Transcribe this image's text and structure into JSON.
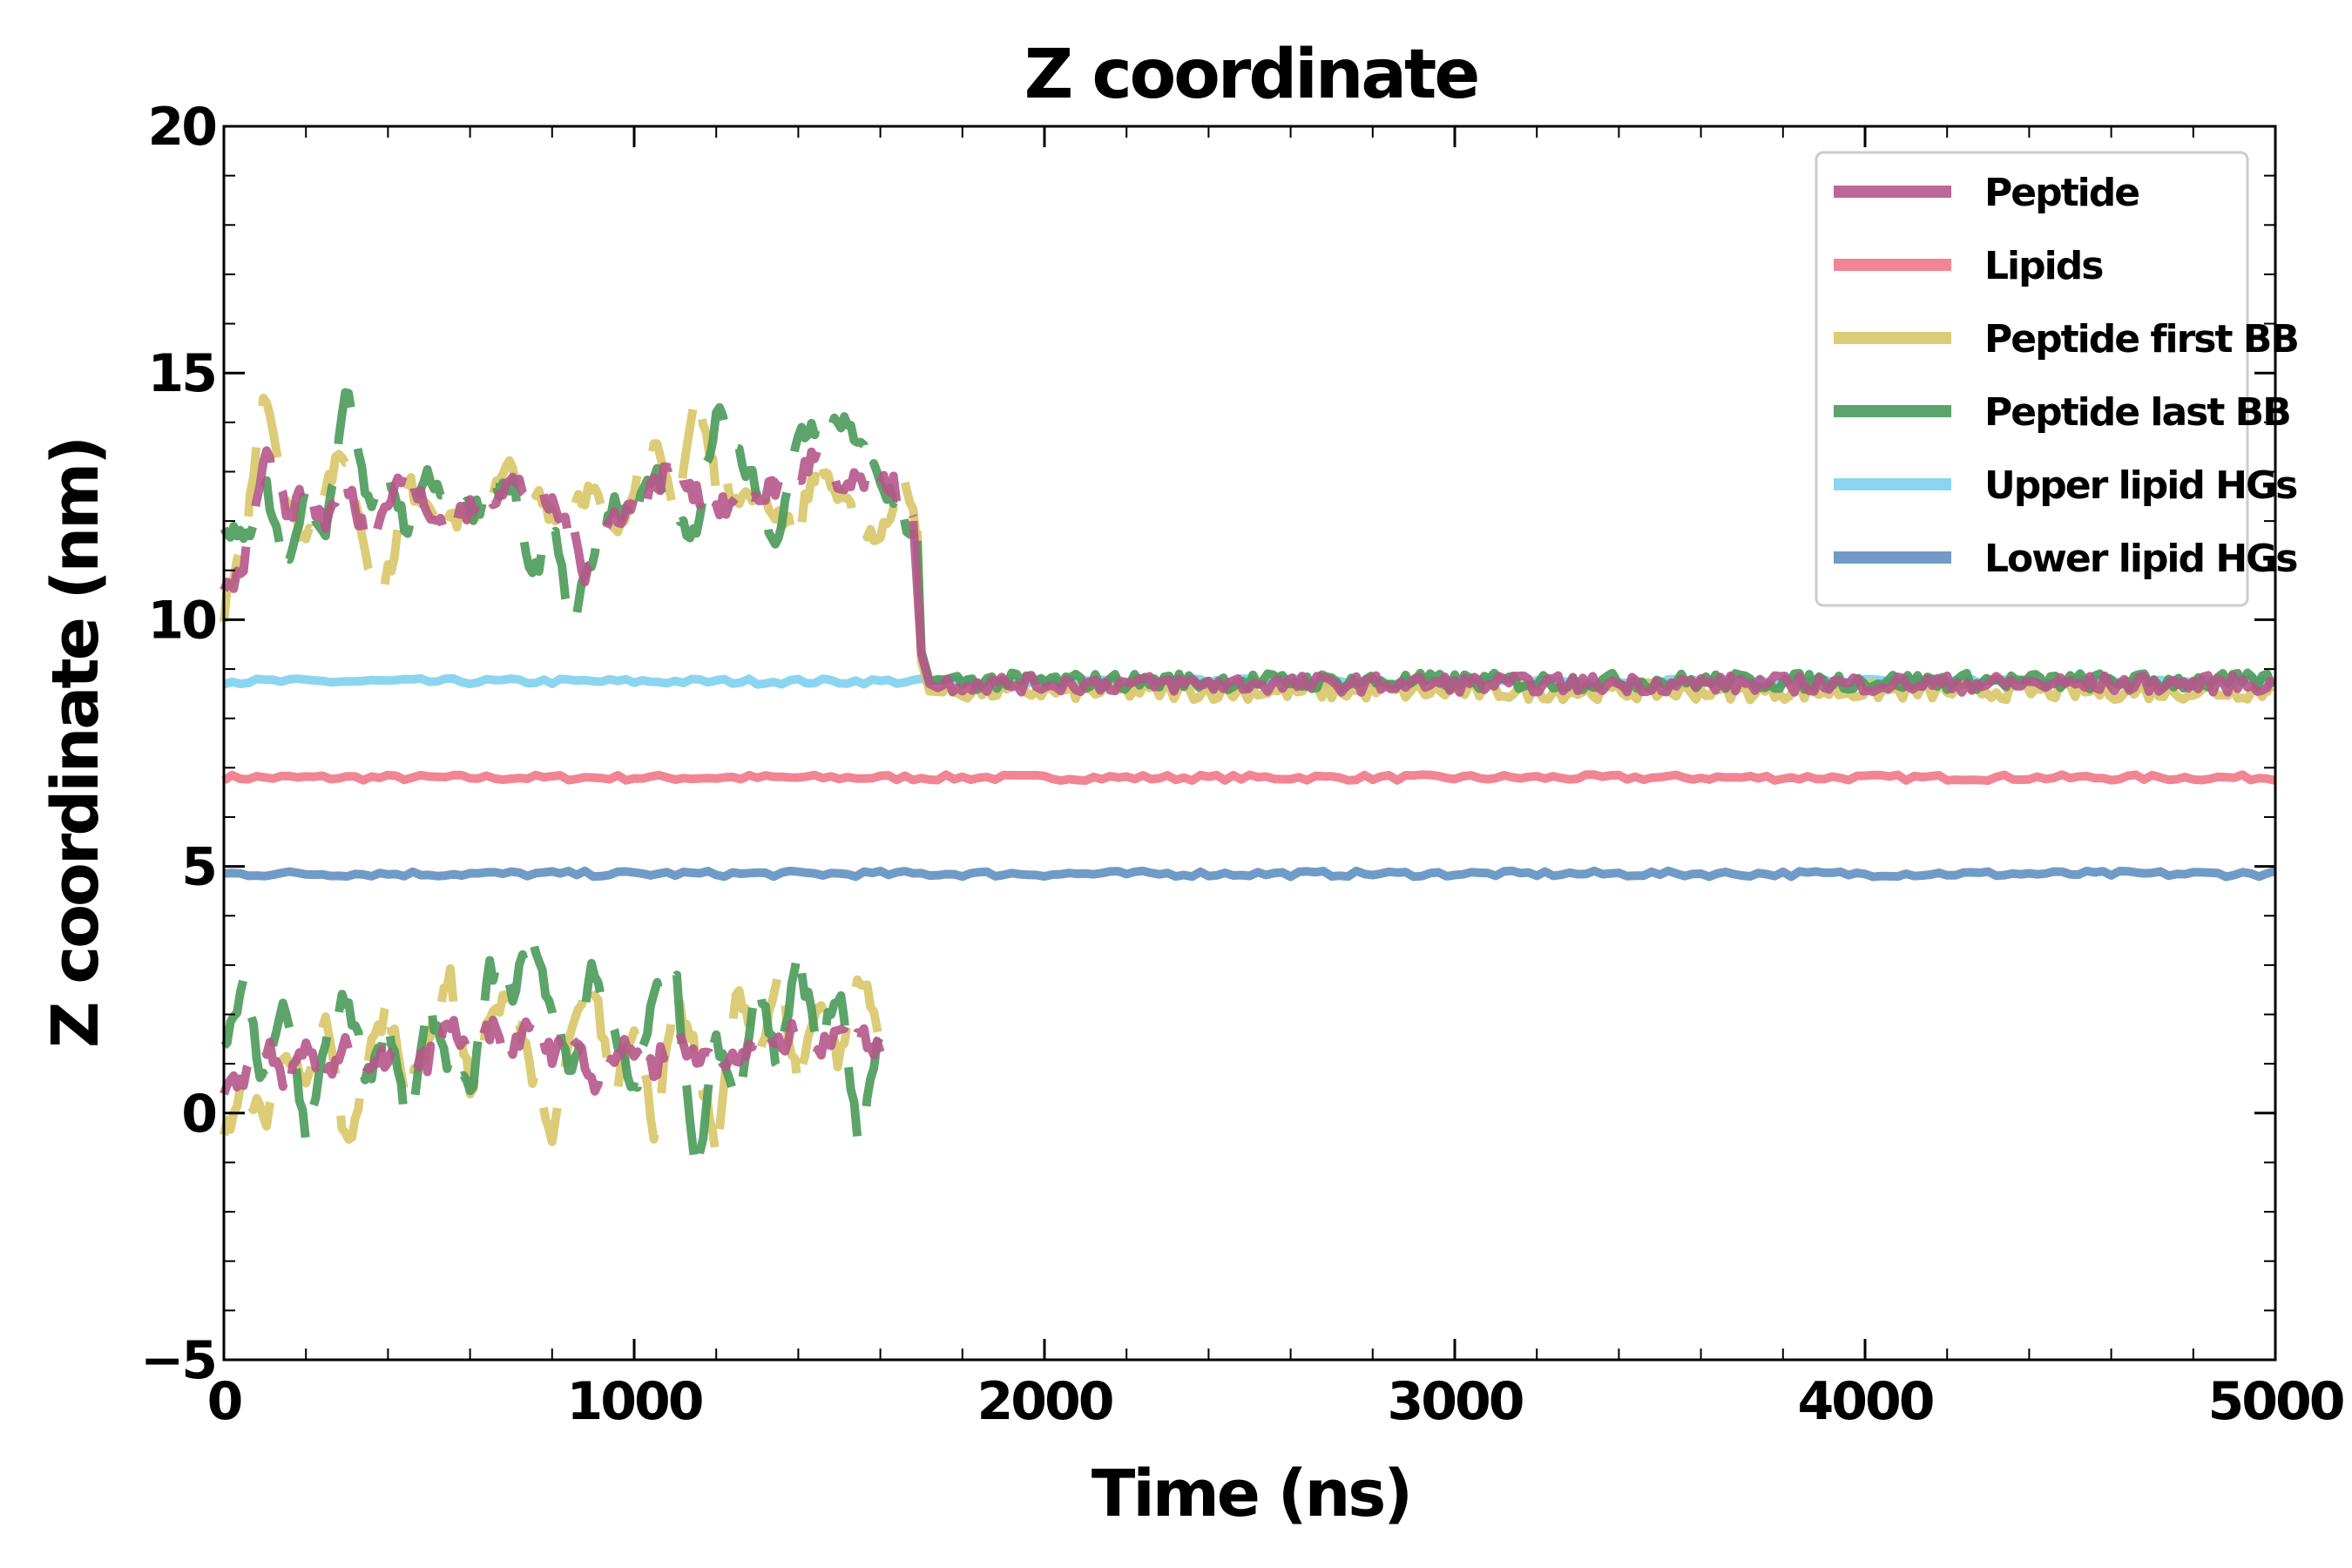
{
  "chart_data": {
    "type": "line",
    "title": "Z coordinate",
    "xlabel": "Time (ns)",
    "ylabel": "Z coordinate (nm)",
    "xlim": [
      0,
      5000
    ],
    "ylim": [
      -5,
      20
    ],
    "x_ticks": [
      0,
      1000,
      2000,
      3000,
      4000,
      5000
    ],
    "x_tick_labels": [
      "0",
      "1000",
      "2000",
      "3000",
      "4000",
      "5000"
    ],
    "y_ticks": [
      -5,
      0,
      5,
      10,
      15,
      20
    ],
    "y_tick_labels": [
      "−5",
      "0",
      "5",
      "10",
      "15",
      "20"
    ],
    "grid": false,
    "legend_position": "top-right",
    "series": [
      {
        "name": "Peptide",
        "color": "#b5568a",
        "upper": [
          [
            0,
            10.5
          ],
          [
            50,
            11.2
          ],
          [
            100,
            13.5
          ],
          [
            150,
            12.2
          ],
          [
            200,
            12.5
          ],
          [
            250,
            12.0
          ],
          [
            300,
            12.8
          ],
          [
            350,
            11.6
          ],
          [
            400,
            12.4
          ],
          [
            450,
            13.1
          ],
          [
            500,
            12.0
          ],
          [
            600,
            12.2
          ],
          [
            700,
            12.8
          ],
          [
            800,
            12.3
          ],
          [
            850,
            11.8
          ],
          [
            880,
            11.0
          ],
          [
            950,
            12.1
          ],
          [
            1000,
            12.3
          ],
          [
            1050,
            12.7
          ],
          [
            1100,
            13.2
          ],
          [
            1150,
            12.6
          ],
          [
            1200,
            12.2
          ],
          [
            1300,
            12.5
          ],
          [
            1400,
            12.9
          ],
          [
            1450,
            13.4
          ],
          [
            1500,
            12.6
          ],
          [
            1600,
            13.0
          ],
          [
            1650,
            12.5
          ],
          [
            1680,
            12.0
          ]
        ],
        "lower": [
          [
            0,
            0.3
          ],
          [
            50,
            0.8
          ],
          [
            100,
            1.4
          ],
          [
            150,
            0.6
          ],
          [
            200,
            1.2
          ],
          [
            250,
            0.8
          ],
          [
            300,
            1.5
          ],
          [
            350,
            0.7
          ],
          [
            400,
            1.2
          ],
          [
            450,
            0.9
          ],
          [
            500,
            1.1
          ],
          [
            550,
            1.8
          ],
          [
            600,
            1.3
          ],
          [
            650,
            1.7
          ],
          [
            700,
            1.2
          ],
          [
            750,
            2.0
          ],
          [
            800,
            1.1
          ],
          [
            850,
            1.6
          ],
          [
            900,
            0.6
          ],
          [
            950,
            1.2
          ],
          [
            1000,
            1.3
          ],
          [
            1050,
            0.9
          ],
          [
            1100,
            1.8
          ],
          [
            1150,
            1.0
          ],
          [
            1200,
            1.4
          ],
          [
            1250,
            0.9
          ],
          [
            1300,
            1.6
          ],
          [
            1350,
            1.3
          ],
          [
            1400,
            1.7
          ],
          [
            1450,
            1.1
          ],
          [
            1500,
            1.9
          ],
          [
            1550,
            1.6
          ],
          [
            1600,
            1.3
          ]
        ],
        "settled": 8.7
      },
      {
        "name": "Lipids",
        "color": "#f07888",
        "level": 6.8
      },
      {
        "name": "Peptide first BB",
        "color": "#d8c668",
        "upper": [
          [
            0,
            10.2
          ],
          [
            50,
            11.5
          ],
          [
            100,
            14.8
          ],
          [
            150,
            12.5
          ],
          [
            200,
            11.6
          ],
          [
            250,
            12.8
          ],
          [
            300,
            13.4
          ],
          [
            350,
            11.2
          ],
          [
            400,
            10.9
          ],
          [
            450,
            12.7
          ],
          [
            500,
            12.4
          ],
          [
            600,
            11.9
          ],
          [
            700,
            13.1
          ],
          [
            800,
            12.2
          ],
          [
            850,
            12.5
          ],
          [
            900,
            12.6
          ],
          [
            950,
            11.6
          ],
          [
            1000,
            12.8
          ],
          [
            1050,
            13.5
          ],
          [
            1100,
            12.1
          ],
          [
            1150,
            14.6
          ],
          [
            1200,
            12.8
          ],
          [
            1300,
            12.4
          ],
          [
            1400,
            11.9
          ],
          [
            1450,
            13.3
          ],
          [
            1500,
            12.4
          ],
          [
            1600,
            11.6
          ],
          [
            1650,
            12.9
          ],
          [
            1690,
            11.8
          ]
        ],
        "lower": [
          [
            0,
            -0.5
          ],
          [
            50,
            0.6
          ],
          [
            100,
            -0.2
          ],
          [
            150,
            1.4
          ],
          [
            200,
            0.4
          ],
          [
            250,
            1.9
          ],
          [
            300,
            -0.8
          ],
          [
            350,
            1.1
          ],
          [
            400,
            2.2
          ],
          [
            450,
            0.3
          ],
          [
            500,
            1.6
          ],
          [
            550,
            2.8
          ],
          [
            600,
            0.5
          ],
          [
            650,
            1.9
          ],
          [
            700,
            2.4
          ],
          [
            750,
            0.9
          ],
          [
            800,
            -0.6
          ],
          [
            850,
            1.7
          ],
          [
            900,
            2.6
          ],
          [
            950,
            0.4
          ],
          [
            1000,
            1.9
          ],
          [
            1050,
            -0.4
          ],
          [
            1100,
            2.3
          ],
          [
            1150,
            1.2
          ],
          [
            1200,
            -0.7
          ],
          [
            1250,
            2.5
          ],
          [
            1300,
            1.1
          ],
          [
            1350,
            2.8
          ],
          [
            1400,
            0.6
          ],
          [
            1450,
            2.4
          ],
          [
            1500,
            1.0
          ],
          [
            1550,
            2.9
          ],
          [
            1600,
            1.5
          ]
        ],
        "settled": 8.55
      },
      {
        "name": "Peptide last BB",
        "color": "#4a9a5a",
        "upper": [
          [
            0,
            12.0
          ],
          [
            50,
            11.5
          ],
          [
            100,
            12.8
          ],
          [
            150,
            11.0
          ],
          [
            200,
            12.6
          ],
          [
            250,
            11.8
          ],
          [
            300,
            14.6
          ],
          [
            350,
            12.3
          ],
          [
            400,
            13.1
          ],
          [
            450,
            11.7
          ],
          [
            500,
            12.9
          ],
          [
            600,
            12.2
          ],
          [
            700,
            12.8
          ],
          [
            750,
            10.8
          ],
          [
            800,
            11.9
          ],
          [
            850,
            9.8
          ],
          [
            900,
            11.4
          ],
          [
            950,
            12.4
          ],
          [
            1000,
            12.1
          ],
          [
            1050,
            13.0
          ],
          [
            1100,
            12.2
          ],
          [
            1150,
            11.6
          ],
          [
            1200,
            14.2
          ],
          [
            1300,
            12.6
          ],
          [
            1350,
            11.4
          ],
          [
            1400,
            13.8
          ],
          [
            1500,
            14.1
          ],
          [
            1600,
            12.8
          ],
          [
            1650,
            12.2
          ],
          [
            1690,
            11.6
          ]
        ],
        "lower": [
          [
            0,
            1.2
          ],
          [
            50,
            2.6
          ],
          [
            100,
            0.4
          ],
          [
            150,
            2.3
          ],
          [
            200,
            -0.6
          ],
          [
            250,
            1.5
          ],
          [
            300,
            2.4
          ],
          [
            350,
            0.7
          ],
          [
            400,
            1.9
          ],
          [
            450,
            -0.4
          ],
          [
            500,
            2.2
          ],
          [
            550,
            1.0
          ],
          [
            600,
            0.3
          ],
          [
            650,
            3.0
          ],
          [
            700,
            2.4
          ],
          [
            750,
            3.5
          ],
          [
            800,
            2.1
          ],
          [
            850,
            0.8
          ],
          [
            900,
            3.1
          ],
          [
            950,
            1.6
          ],
          [
            1000,
            0.4
          ],
          [
            1050,
            2.4
          ],
          [
            1100,
            3.0
          ],
          [
            1150,
            -1.5
          ],
          [
            1200,
            1.6
          ],
          [
            1250,
            0.2
          ],
          [
            1300,
            2.8
          ],
          [
            1350,
            0.9
          ],
          [
            1400,
            3.2
          ],
          [
            1450,
            1.3
          ],
          [
            1500,
            2.5
          ],
          [
            1550,
            -0.9
          ],
          [
            1600,
            1.8
          ]
        ],
        "settled": 8.75
      },
      {
        "name": "Upper lipid HGs",
        "color": "#80d0ee",
        "level": 8.75
      },
      {
        "name": "Lower lipid HGs",
        "color": "#6090c0",
        "level": 4.85
      }
    ]
  }
}
